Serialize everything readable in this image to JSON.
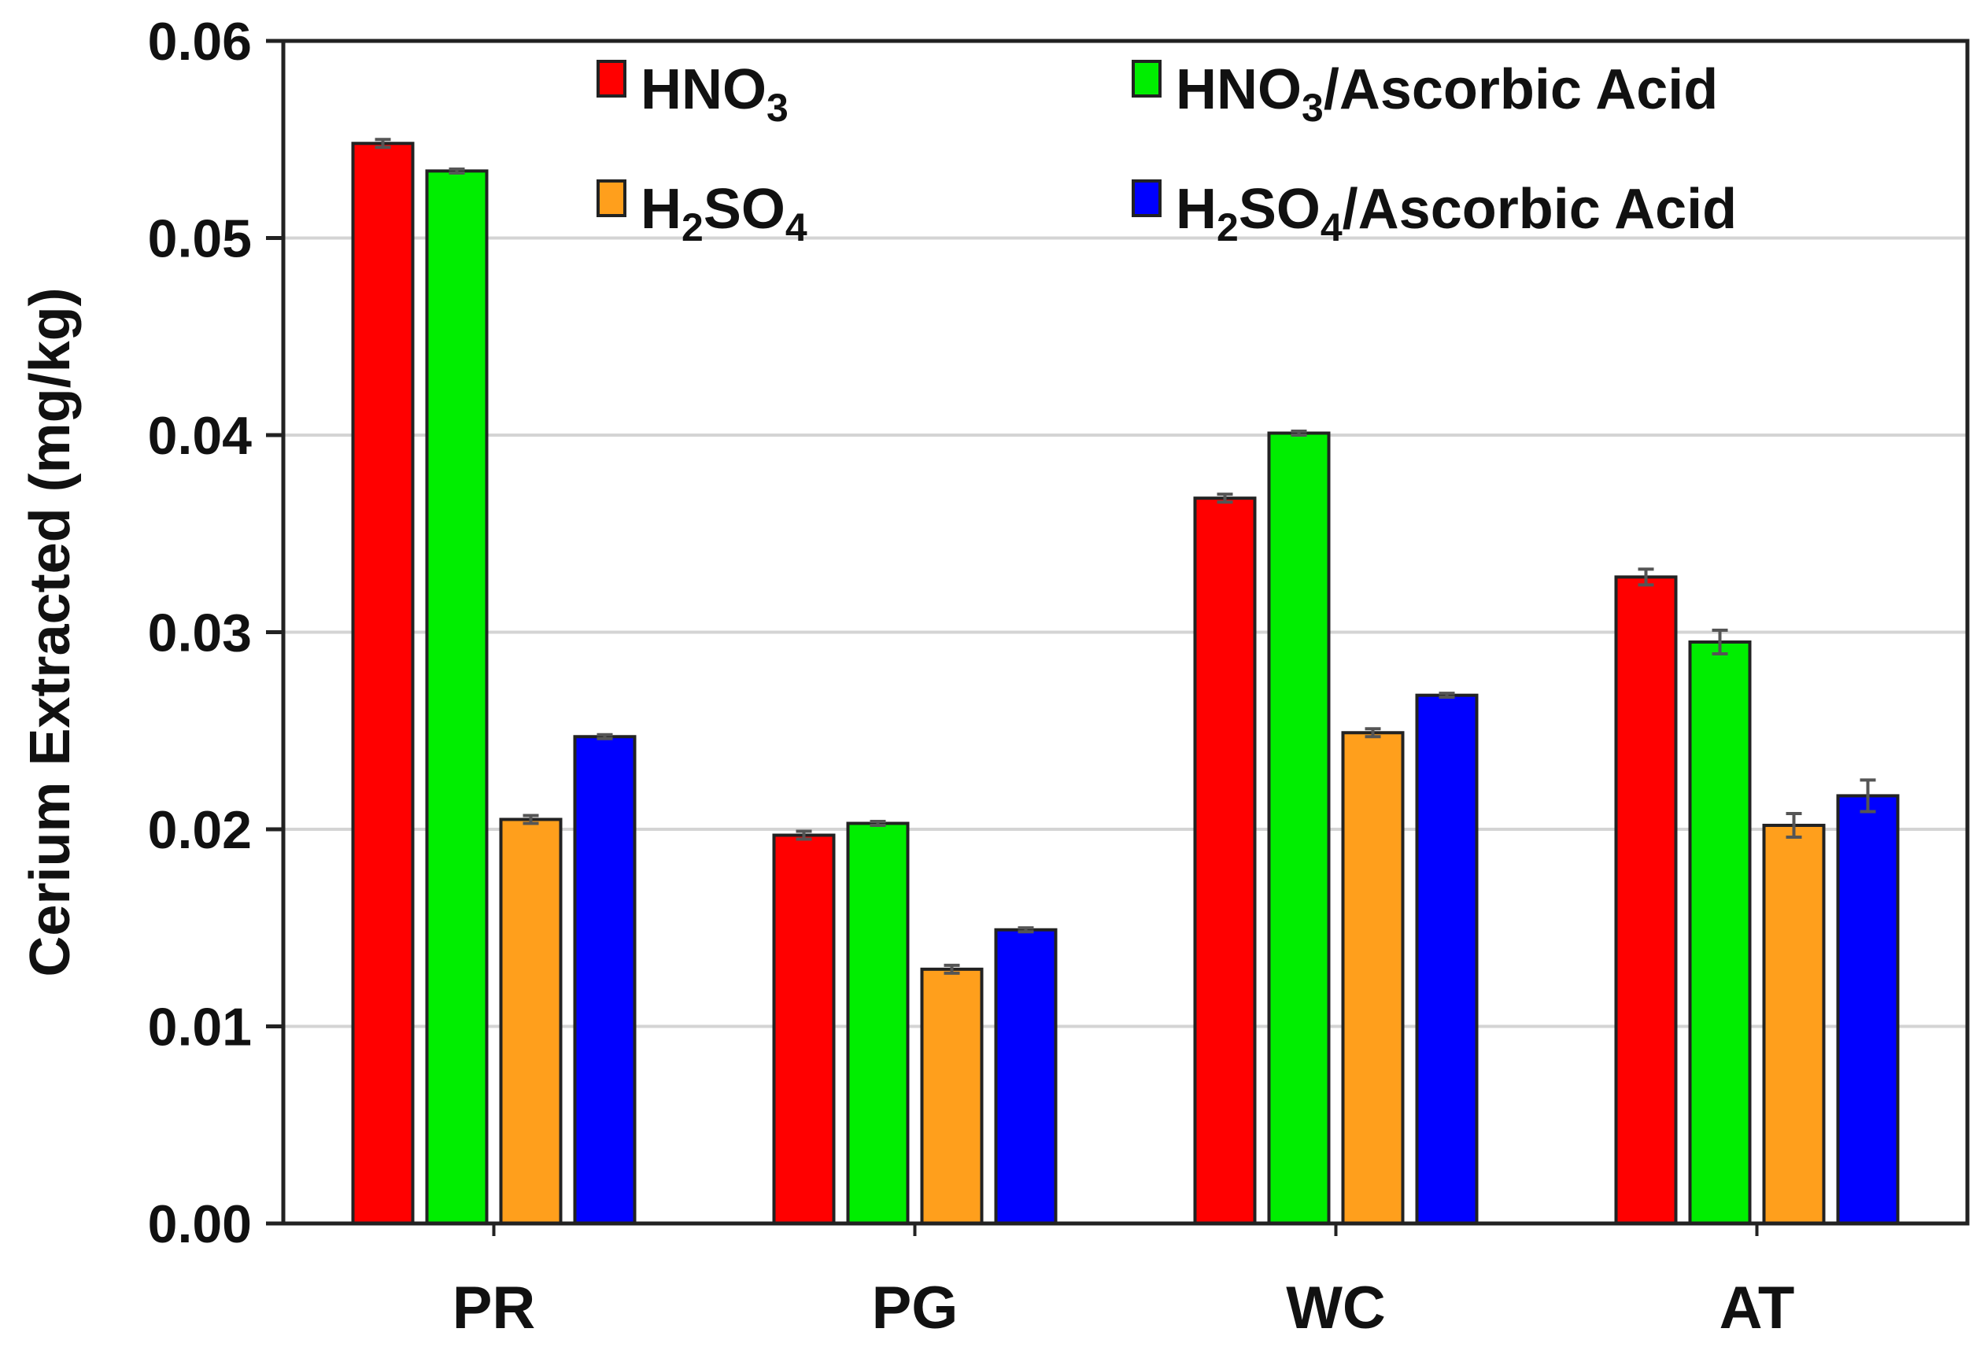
{
  "chart_data": {
    "type": "bar",
    "title": "",
    "xlabel": "",
    "ylabel": "Cerium Extracted (mg/kg)",
    "ylim": [
      0,
      0.06
    ],
    "yticks": [
      "0.00",
      "0.01",
      "0.02",
      "0.03",
      "0.04",
      "0.05",
      "0.06"
    ],
    "ytick_values": [
      0,
      0.01,
      0.02,
      0.03,
      0.04,
      0.05,
      0.06
    ],
    "grid": true,
    "legend_position": "top",
    "categories": [
      "PR",
      "PG",
      "WC",
      "AT"
    ],
    "series": [
      {
        "name": "HNO3",
        "legend": [
          {
            "text": "HNO",
            "sub": false
          },
          {
            "text": "3",
            "sub": true
          }
        ],
        "color": "#ff0000",
        "values": [
          0.0548,
          0.0197,
          0.0368,
          0.0328
        ],
        "errors": [
          0.0002,
          0.0002,
          0.0002,
          0.0004
        ]
      },
      {
        "name": "HNO3/Ascorbic Acid",
        "legend": [
          {
            "text": "HNO",
            "sub": false
          },
          {
            "text": "3",
            "sub": true
          },
          {
            "text": "/Ascorbic Acid",
            "sub": false
          }
        ],
        "color": "#00ee00",
        "values": [
          0.0534,
          0.0203,
          0.0401,
          0.0295
        ],
        "errors": [
          0.0001,
          0.0001,
          0.0001,
          0.0006
        ]
      },
      {
        "name": "H2SO4",
        "legend": [
          {
            "text": "H",
            "sub": false
          },
          {
            "text": "2",
            "sub": true
          },
          {
            "text": "SO",
            "sub": false
          },
          {
            "text": "4",
            "sub": true
          }
        ],
        "color": "#ff9f1c",
        "values": [
          0.0205,
          0.0129,
          0.0249,
          0.0202
        ],
        "errors": [
          0.0002,
          0.0002,
          0.0002,
          0.0006
        ]
      },
      {
        "name": "H2SO4/Ascorbic Acid",
        "legend": [
          {
            "text": "H",
            "sub": false
          },
          {
            "text": "2",
            "sub": true
          },
          {
            "text": "SO",
            "sub": false
          },
          {
            "text": "4",
            "sub": true
          },
          {
            "text": "/Ascorbic Acid",
            "sub": false
          }
        ],
        "color": "#0000ff",
        "values": [
          0.0247,
          0.0149,
          0.0268,
          0.0217
        ],
        "errors": [
          0.0001,
          0.0001,
          0.0001,
          0.0008
        ]
      }
    ]
  }
}
